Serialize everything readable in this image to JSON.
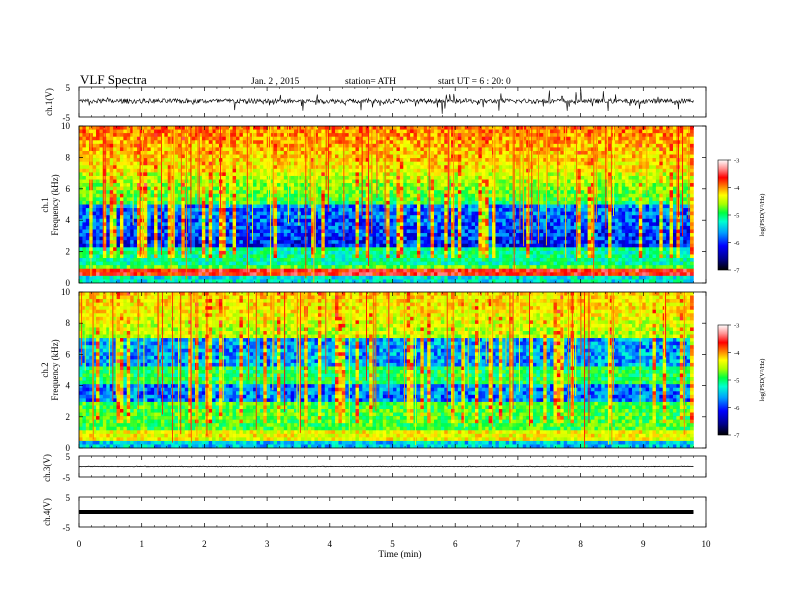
{
  "header": {
    "title": "VLF  Spectra",
    "date": "Jan. 2 , 2015",
    "station": "station= ATH",
    "start": "start  UT =   6  : 20: 0"
  },
  "colors": {
    "colormap": [
      "#000000",
      "#00008b",
      "#0000ff",
      "#00a0ff",
      "#00ffd0",
      "#00ff40",
      "#a8ff00",
      "#ffff00",
      "#ff8000",
      "#ff0000",
      "#ff9090",
      "#ffffff"
    ],
    "trace": "#000000"
  },
  "chart_data": [
    {
      "type": "line",
      "panel": "ch1-waveform",
      "ylabel": "ch.1(V)",
      "ylim": [
        -5,
        5
      ],
      "yticks": [
        "5",
        "-5"
      ],
      "description": "dense noisy waveform centered near 0 V with many spikes",
      "baseline": 0.3,
      "noise_amplitude": 0.8,
      "xlim": [
        0,
        10
      ],
      "data_end": 9.8
    },
    {
      "type": "heatmap",
      "panel": "ch1-spectrogram",
      "ylabel": "ch.1\nFrequency (kHz)",
      "ylabel_line1": "ch.1",
      "ylabel_line2": "Frequency  (kHz)",
      "ylim": [
        0,
        10
      ],
      "yticks": [
        "0",
        "2",
        "4",
        "6",
        "8",
        "10"
      ],
      "colorbar_label": "log(PSD(V²/Hz)",
      "colorbar_range": [
        -7,
        -3
      ],
      "colorbar_ticks": [
        "-3",
        "-4",
        "-5",
        "-6",
        "-7"
      ],
      "xlim": [
        0,
        10
      ],
      "data_end": 9.8
    },
    {
      "type": "heatmap",
      "panel": "ch2-spectrogram",
      "ylabel_line1": "ch.2",
      "ylabel_line2": "Frequency  (kHz)",
      "ylim": [
        0,
        10
      ],
      "yticks": [
        "0",
        "2",
        "4",
        "6",
        "8",
        "10"
      ],
      "colorbar_label": "log(PSD(V²/Hz)",
      "colorbar_range": [
        -7,
        -3
      ],
      "colorbar_ticks": [
        "-3",
        "-4",
        "-5",
        "-6",
        "-7"
      ],
      "xlim": [
        0,
        10
      ],
      "data_end": 9.8
    },
    {
      "type": "line",
      "panel": "ch3-waveform",
      "ylabel": "ch.3(V)",
      "ylim": [
        -5,
        5
      ],
      "yticks": [
        "5",
        "-5"
      ],
      "description": "flat trace near 0 V",
      "baseline": 0,
      "noise_amplitude": 0.15,
      "xlim": [
        0,
        10
      ],
      "data_end": 9.8
    },
    {
      "type": "line",
      "panel": "ch4-waveform",
      "ylabel": "ch.4(V)",
      "ylim": [
        -5,
        5
      ],
      "yticks": [
        "5",
        "-5"
      ],
      "description": "thick flat trace near 0 V",
      "baseline": 0,
      "noise_amplitude": 0.35,
      "xlim": [
        0,
        10
      ],
      "data_end": 9.8
    }
  ],
  "xaxis": {
    "label": "Time  (min)",
    "ticks": [
      "0",
      "1",
      "2",
      "3",
      "4",
      "5",
      "6",
      "7",
      "8",
      "9",
      "10"
    ]
  }
}
